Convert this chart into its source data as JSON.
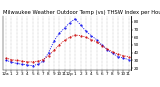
{
  "title": "Milwaukee Weather Outdoor Temp (vs) THSW Index per Hour (Last 24 Hours)",
  "hours": [
    0,
    1,
    2,
    3,
    4,
    5,
    6,
    7,
    8,
    9,
    10,
    11,
    12,
    13,
    14,
    15,
    16,
    17,
    18,
    19,
    20,
    21,
    22,
    23
  ],
  "x_labels": [
    "12a",
    "1",
    "2",
    "3",
    "4",
    "5",
    "6",
    "7",
    "8",
    "9",
    "10",
    "11",
    "12p",
    "1",
    "2",
    "3",
    "4",
    "5",
    "6",
    "7",
    "8",
    "9",
    "10",
    "11"
  ],
  "temp": [
    33,
    31,
    30,
    29,
    28,
    28,
    29,
    31,
    36,
    43,
    50,
    56,
    60,
    63,
    62,
    60,
    57,
    54,
    49,
    45,
    41,
    38,
    36,
    35
  ],
  "thsw": [
    30,
    28,
    26,
    25,
    24,
    23,
    25,
    29,
    40,
    55,
    65,
    72,
    79,
    84,
    76,
    68,
    62,
    57,
    50,
    44,
    39,
    35,
    33,
    31
  ],
  "temp_color": "#cc0000",
  "thsw_color": "#0000ee",
  "bg_color": "#ffffff",
  "grid_color": "#888888",
  "ylim_min": 18,
  "ylim_max": 88,
  "y_ticks": [
    20,
    30,
    40,
    50,
    60,
    70,
    80
  ],
  "title_fontsize": 3.8,
  "tick_fontsize": 3.0,
  "line_width": 0.55,
  "marker_size": 1.0
}
